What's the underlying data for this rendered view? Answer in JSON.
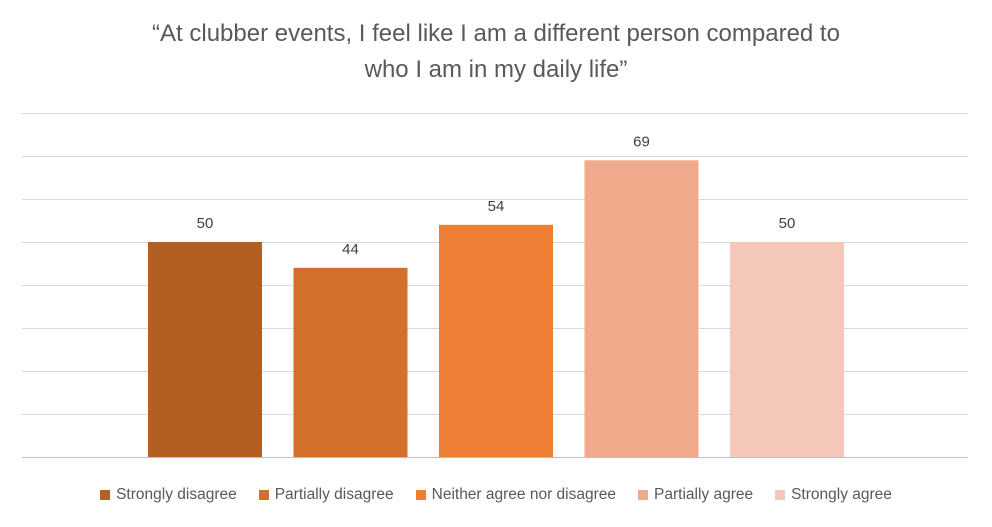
{
  "chart_data": {
    "type": "bar",
    "title_lines": [
      "“At clubber events, I feel like I am a different person compared to",
      "who I am in my daily life”"
    ],
    "categories": [
      "Strongly disagree",
      "Partially disagree",
      "Neither agree nor disagree",
      "Partially agree",
      "Strongly agree"
    ],
    "values": [
      50,
      44,
      54,
      69,
      50
    ],
    "colors": [
      "#b35e22",
      "#d2702c",
      "#ed7f34",
      "#f0a98a",
      "#f4c7b8"
    ],
    "ylim": [
      0,
      80
    ],
    "gridline_step": 10,
    "grid": true,
    "xlabel": "",
    "ylabel": "",
    "legend_position": "bottom"
  }
}
